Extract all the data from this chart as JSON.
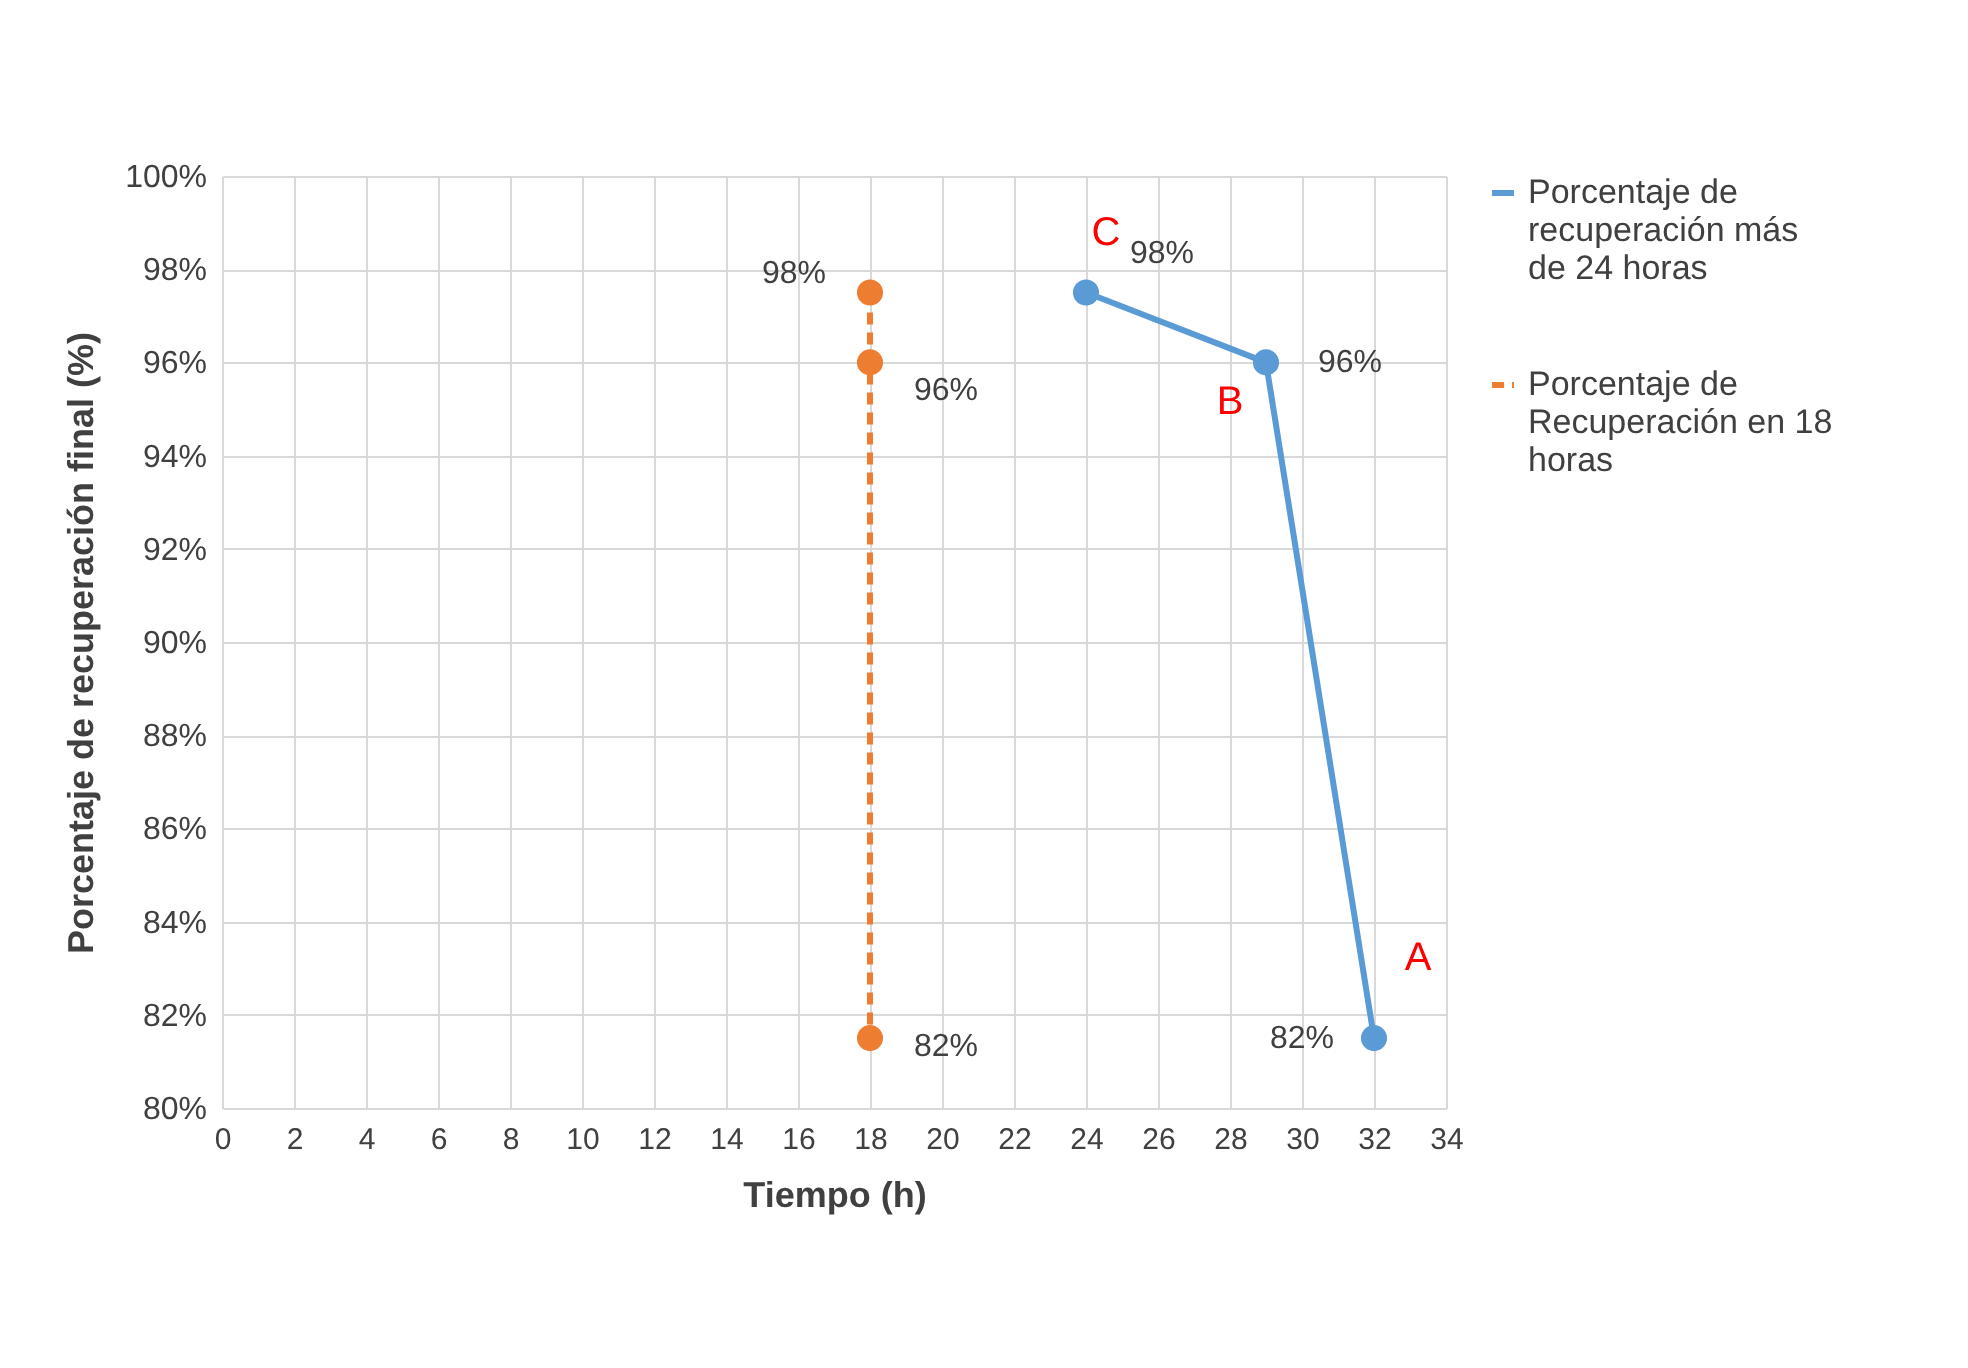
{
  "chart_data": {
    "type": "line",
    "xlabel": "Tiempo (h)",
    "ylabel": "Porcentaje de recuperación final (%)",
    "xlim": [
      0,
      34
    ],
    "xticks": [
      0,
      2,
      4,
      6,
      8,
      10,
      12,
      14,
      16,
      18,
      20,
      22,
      24,
      26,
      28,
      30,
      32,
      34
    ],
    "ylim": [
      80,
      100
    ],
    "yticks": [
      {
        "value": 80,
        "label": "80%"
      },
      {
        "value": 82,
        "label": "82%"
      },
      {
        "value": 84,
        "label": "84%"
      },
      {
        "value": 86,
        "label": "86%"
      },
      {
        "value": 88,
        "label": "88%"
      },
      {
        "value": 90,
        "label": "90%"
      },
      {
        "value": 92,
        "label": "92%"
      },
      {
        "value": 94,
        "label": "94%"
      },
      {
        "value": 96,
        "label": "96%"
      },
      {
        "value": 98,
        "label": "98%"
      },
      {
        "value": 100,
        "label": "100%"
      }
    ],
    "grid": true,
    "legend": "right",
    "marker": "circle",
    "series": [
      {
        "name": "Porcentaje de recuperación más de 24 horas",
        "color": "#5b9bd5",
        "line_style": "solid",
        "x": [
          24,
          29,
          32
        ],
        "values": [
          97.5,
          96,
          81.5
        ],
        "value_labels": [
          "98%",
          "96%",
          "82%"
        ]
      },
      {
        "name": "Porcentaje de Recuperación en 18 horas",
        "color": "#ed7d31",
        "line_style": "dashed",
        "x": [
          18,
          18,
          18
        ],
        "values": [
          97.5,
          96,
          81.5
        ],
        "value_labels": [
          "98%",
          "96%",
          "82%"
        ]
      }
    ],
    "annotations": [
      {
        "text": "C",
        "x": 24,
        "y": 97.5
      },
      {
        "text": "B",
        "x": 29,
        "y": 96
      },
      {
        "text": "A",
        "x": 32,
        "y": 81.5
      }
    ]
  }
}
